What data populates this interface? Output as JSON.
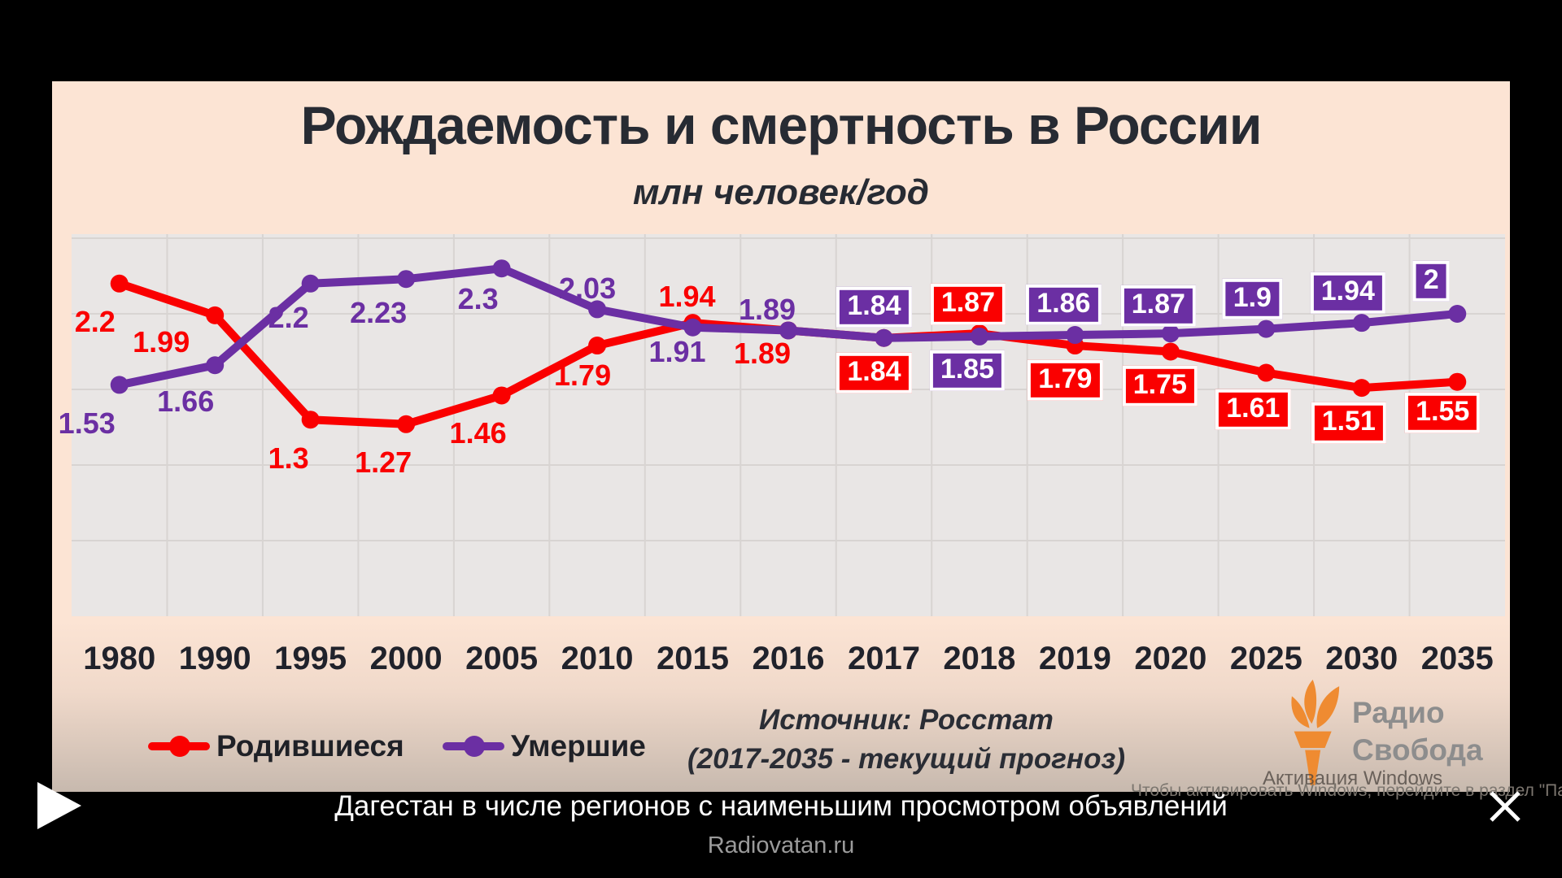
{
  "slide": {
    "title": "Рождаемость и смертность в России",
    "subtitle": "млн человек/год",
    "source_line1": "Источник: Росстат",
    "source_line2": "(2017-2035 - текущий прогноз)",
    "legend": [
      {
        "label": "Родившиеся",
        "color": "#fa0000"
      },
      {
        "label": "Умершие",
        "color": "#6b2fa3"
      }
    ],
    "logo": {
      "line1": "Радио",
      "line2": "Свобода",
      "flame_color": "#ef8b31",
      "text_color": "#8d8d8d"
    }
  },
  "chart_data": {
    "type": "line",
    "title": "Рождаемость и смертность в России",
    "ylabel": "млн человек/год",
    "categories": [
      "1980",
      "1990",
      "1995",
      "2000",
      "2005",
      "2010",
      "2015",
      "2016",
      "2017",
      "2018",
      "2019",
      "2020",
      "2025",
      "2030",
      "2035"
    ],
    "series": [
      {
        "name": "Родившиеся",
        "color": "#fa0000",
        "values": [
          2.2,
          1.99,
          1.3,
          1.27,
          1.46,
          1.79,
          1.94,
          1.89,
          1.84,
          1.87,
          1.79,
          1.75,
          1.61,
          1.51,
          1.55
        ],
        "labels": [
          "2.2",
          "1.99",
          "1.3",
          "1.27",
          "1.46",
          "1.79",
          "1.94",
          "1.89",
          "1.84",
          "1.87",
          "1.79",
          "1.75",
          "1.61",
          "1.51",
          "1.55"
        ]
      },
      {
        "name": "Умершие",
        "color": "#6b2fa3",
        "values": [
          1.53,
          1.66,
          2.2,
          2.23,
          2.3,
          2.03,
          1.91,
          1.89,
          1.84,
          1.85,
          1.86,
          1.87,
          1.9,
          1.94,
          2
        ],
        "labels": [
          "1.53",
          "1.66",
          "2.2",
          "2.23",
          "2.3",
          "2.03",
          "1.91",
          "1.89",
          "1.84",
          "1.85",
          "1.86",
          "1.87",
          "1.9",
          "1.94",
          "2"
        ]
      }
    ],
    "ylim": [
      0,
      2.53
    ],
    "grid": true,
    "gridline_step": 0.5,
    "legend_position": "bottom",
    "boxed_labels_from_index": 8,
    "forecast_note": "2017-2035 - текущий прогноз"
  },
  "video_player": {
    "caption": "Дагестан в числе регионов с наименьшим просмотром объявлений",
    "watermark": "Radiovatan.ru"
  },
  "windows_activation": {
    "line1": "Активация Windows",
    "line2": "Чтобы активировать Windows, перейдите в раздел \"Параметры\"."
  }
}
